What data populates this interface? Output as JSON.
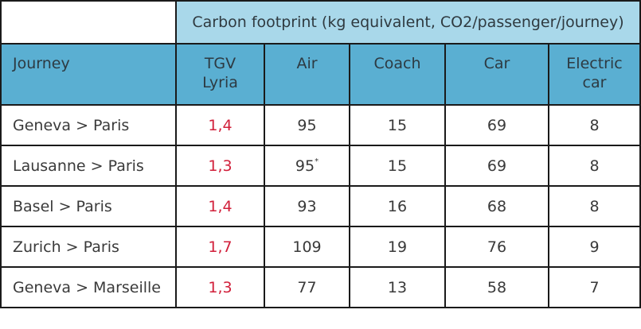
{
  "table": {
    "title": "Carbon footprint (kg equivalent, CO2/passenger/journey)",
    "headers": {
      "journey": "Journey",
      "tgv_line1": "TGV",
      "tgv_line2": "Lyria",
      "air": "Air",
      "coach": "Coach",
      "car": "Car",
      "electric_line1": "Electric",
      "electric_line2": "car"
    },
    "rows": [
      {
        "journey": "Geneva > Paris",
        "tgv": "1,4",
        "air": "95",
        "air_note": "",
        "coach": "15",
        "car": "69",
        "electric": "8"
      },
      {
        "journey": "Lausanne > Paris",
        "tgv": "1,3",
        "air": "95",
        "air_note": "*",
        "coach": "15",
        "car": "69",
        "electric": "8"
      },
      {
        "journey": "Basel > Paris",
        "tgv": "1,4",
        "air": "93",
        "air_note": "",
        "coach": "16",
        "car": "68",
        "electric": "8"
      },
      {
        "journey": "Zurich > Paris",
        "tgv": "1,7",
        "air": "109",
        "air_note": "",
        "coach": "19",
        "car": "76",
        "electric": "9"
      },
      {
        "journey": "Geneva > Marseille",
        "tgv": "1,3",
        "air": "77",
        "air_note": "",
        "coach": "13",
        "car": "58",
        "electric": "7"
      }
    ]
  },
  "colors": {
    "title_bg": "#a9d8ea",
    "header_bg": "#5aafd2",
    "tgv_value": "#d11f3a",
    "border": "#1a1a1a"
  }
}
